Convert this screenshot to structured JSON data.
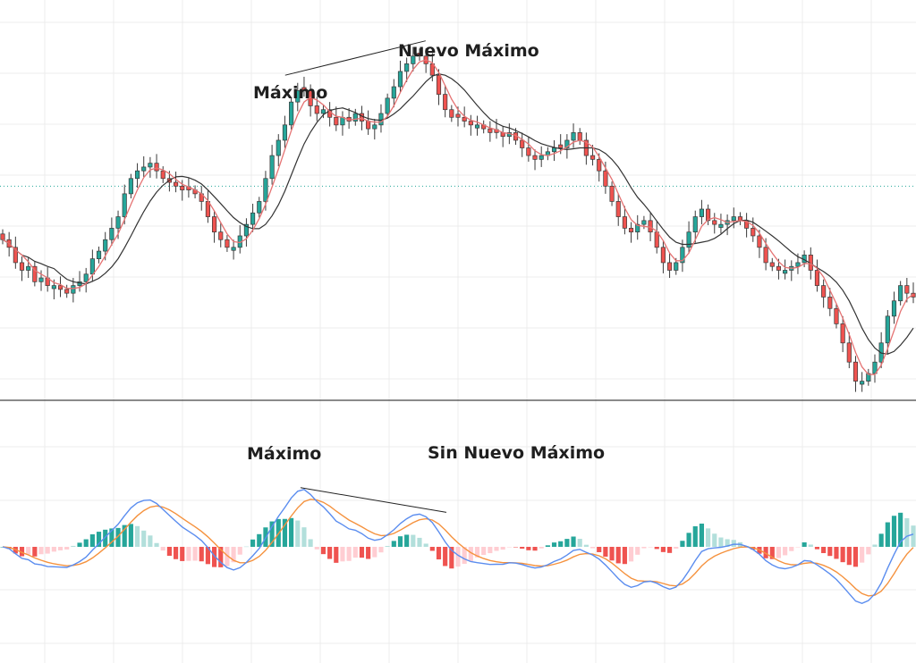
{
  "chart_data": [
    {
      "type": "candlestick",
      "panel": "price",
      "colors": {
        "up": "#26a69a",
        "down": "#ef5350",
        "wick": "#3a3a3a",
        "ma_fast": "#e57373",
        "ma_slow": "#333333",
        "reference_line": "#26a69a",
        "grid": "#ececec"
      },
      "ylim": [
        0,
        100
      ],
      "reference_level": 56,
      "close": [
        42,
        40,
        36,
        34,
        35,
        31,
        32,
        30,
        30,
        29,
        28,
        30,
        31,
        33,
        37,
        39,
        42,
        45,
        48,
        54,
        58,
        60,
        61,
        62,
        60,
        58,
        57,
        56,
        55,
        55,
        54,
        52,
        48,
        44,
        42,
        40,
        40,
        43,
        46,
        49,
        52,
        58,
        64,
        68,
        72,
        78,
        81,
        81,
        77,
        75,
        76,
        74,
        72,
        74,
        73,
        75,
        73,
        71,
        72,
        75,
        79,
        82,
        86,
        88,
        90,
        90,
        88,
        85,
        80,
        76,
        74,
        74,
        73,
        72,
        72,
        71,
        70,
        70,
        69,
        70,
        68,
        66,
        64,
        63,
        64,
        65,
        66,
        66,
        68,
        70,
        68,
        64,
        63,
        60,
        56,
        52,
        48,
        45,
        44,
        46,
        47,
        44,
        40,
        36,
        34,
        36,
        40,
        44,
        48,
        50,
        47,
        46,
        46,
        47,
        48,
        47,
        45,
        43,
        40,
        36,
        35,
        34,
        34,
        35,
        36,
        38,
        34,
        30,
        27,
        24,
        20,
        15,
        10,
        5,
        5,
        7,
        10,
        15,
        22,
        26,
        30,
        28,
        27
      ]
    },
    {
      "type": "macd",
      "panel": "oscillator",
      "colors": {
        "macd_line": "#5b8def",
        "signal_line": "#f5923e",
        "hist_pos_strong": "#26a69a",
        "hist_pos_weak": "#b2dfdb",
        "hist_neg_strong": "#ef5350",
        "hist_neg_weak": "#ffcdd2"
      },
      "ylim": [
        -100,
        100
      ]
    }
  ],
  "annotations": {
    "price_high": "Máximo",
    "price_new_high": "Nuevo Máximo",
    "macd_high": "Máximo",
    "macd_no_new_high": "Sin Nuevo Máximo"
  }
}
